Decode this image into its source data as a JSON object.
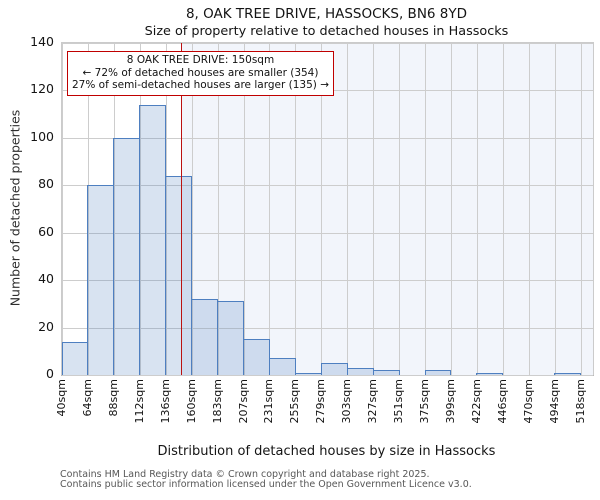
{
  "title": "8, OAK TREE DRIVE, HASSOCKS, BN6 8YD",
  "subtitle": "Size of property relative to detached houses in Hassocks",
  "ylabel": "Number of detached properties",
  "xlabel": "Distribution of detached houses by size in Hassocks",
  "annotation": {
    "line1": "8 OAK TREE DRIVE: 150sqm",
    "line2": "← 72% of detached houses are smaller (354)",
    "line3": "27% of semi-detached houses are larger (135) →"
  },
  "footer": [
    "Contains HM Land Registry data © Crown copyright and database right 2025.",
    "Contains public sector information licensed under the Open Government Licence v3.0."
  ],
  "chart_data": {
    "type": "bar",
    "title": "8, OAK TREE DRIVE, HASSOCKS, BN6 8YD",
    "subtitle": "Size of property relative to detached houses in Hassocks",
    "xlabel": "Distribution of detached houses by size in Hassocks",
    "ylabel": "Number of detached properties",
    "bin_edges_sqm": [
      40,
      64,
      88,
      112,
      136,
      160,
      183,
      207,
      231,
      255,
      279,
      303,
      327,
      351,
      375,
      399,
      422,
      446,
      470,
      494,
      518
    ],
    "bin_labels": [
      "40sqm",
      "64sqm",
      "88sqm",
      "112sqm",
      "136sqm",
      "160sqm",
      "183sqm",
      "207sqm",
      "231sqm",
      "255sqm",
      "279sqm",
      "303sqm",
      "327sqm",
      "351sqm",
      "375sqm",
      "399sqm",
      "422sqm",
      "446sqm",
      "470sqm",
      "494sqm",
      "518sqm"
    ],
    "values": [
      14,
      80,
      100,
      114,
      84,
      32,
      31,
      15,
      7,
      1,
      5,
      3,
      2,
      0,
      2,
      0,
      1,
      0,
      0,
      1
    ],
    "yticks": [
      0,
      20,
      40,
      60,
      80,
      100,
      120,
      140
    ],
    "ylim": [
      0,
      140
    ],
    "grid": true,
    "marker_value_sqm": 150,
    "shade_region": "right-of-marker",
    "colors": {
      "bar_fill": "#d9e4f3",
      "bar_edge": "#4e7fc0",
      "marker_line": "#bb1111",
      "annotation_border": "#c00000",
      "shade": "#f2f5fa",
      "grid": "#cdcdcd"
    }
  }
}
